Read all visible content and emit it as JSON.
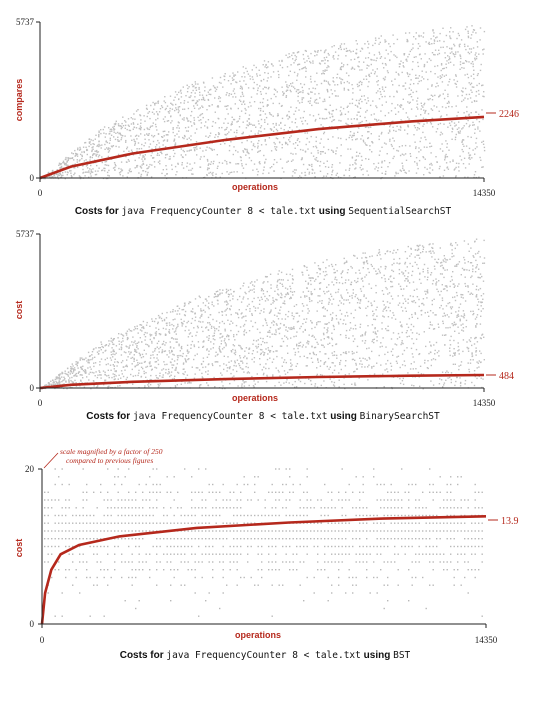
{
  "chart_data": [
    {
      "type": "scatter",
      "title": "",
      "caption": {
        "prefix": "Costs for",
        "command": "java FrequencyCounter 8 < tale.txt",
        "using": "using",
        "impl": "SequentialSearchST"
      },
      "xlabel": "operations",
      "ylabel": "compares",
      "xlim": [
        0,
        14350
      ],
      "ylim": [
        0,
        5737
      ],
      "x_ticks": [
        "0",
        "14350"
      ],
      "y_ticks": [
        "0",
        "5737"
      ],
      "average_final": "2246",
      "series": [
        {
          "name": "",
          "kind": "points",
          "color": "#c0c0c0",
          "envelope": [
            [
              0,
              0
            ],
            [
              2000,
              1900
            ],
            [
              5000,
              3600
            ],
            [
              8000,
              4600
            ],
            [
              11000,
              5250
            ],
            [
              14350,
              5737
            ]
          ]
        },
        {
          "name": "",
          "kind": "average-line",
          "color": "#b5281c",
          "x": [
            0,
            1000,
            3000,
            6000,
            9000,
            12000,
            14350
          ],
          "y": [
            0,
            420,
            900,
            1400,
            1800,
            2080,
            2246
          ]
        }
      ],
      "grid": false
    },
    {
      "type": "scatter",
      "title": "",
      "caption": {
        "prefix": "Costs for",
        "command": "java FrequencyCounter 8 < tale.txt",
        "using": "using",
        "impl": "BinarySearchST"
      },
      "xlabel": "operations",
      "ylabel": "cost",
      "xlim": [
        0,
        14350
      ],
      "ylim": [
        0,
        5737
      ],
      "x_ticks": [
        "0",
        "14350"
      ],
      "y_ticks": [
        "0",
        "5737"
      ],
      "average_final": "484",
      "series": [
        {
          "name": "",
          "kind": "points",
          "color": "#c0c0c0",
          "envelope": [
            [
              0,
              0
            ],
            [
              2000,
              1800
            ],
            [
              5000,
              3400
            ],
            [
              8000,
              4500
            ],
            [
              11000,
              5250
            ],
            [
              14350,
              5600
            ]
          ]
        },
        {
          "name": "",
          "kind": "average-line",
          "color": "#b5281c",
          "x": [
            0,
            1000,
            3000,
            6000,
            9000,
            12000,
            14350
          ],
          "y": [
            0,
            120,
            230,
            330,
            410,
            460,
            484
          ]
        }
      ],
      "grid": false
    },
    {
      "type": "scatter",
      "title": "",
      "caption": {
        "prefix": "Costs for",
        "command": "java FrequencyCounter 8 < tale.txt",
        "using": "using",
        "impl": "BST"
      },
      "xlabel": "operations",
      "ylabel": "cost",
      "xlim": [
        0,
        14350
      ],
      "ylim": [
        0,
        20
      ],
      "x_ticks": [
        "0",
        "14350"
      ],
      "y_ticks": [
        "0",
        "20"
      ],
      "average_final": "13.9",
      "annotation": [
        "scale magnified by a factor of 250",
        "compared to previous figures"
      ],
      "series": [
        {
          "name": "",
          "kind": "points",
          "color": "#b8b8b8",
          "levels": [
            [
              1,
              20
            ]
          ]
        },
        {
          "name": "",
          "kind": "average-line",
          "color": "#b5281c",
          "x": [
            0,
            100,
            300,
            600,
            1200,
            2500,
            5000,
            8000,
            11000,
            14350
          ],
          "y": [
            0,
            4,
            7,
            9,
            10.2,
            11.3,
            12.4,
            13.1,
            13.6,
            13.9
          ]
        }
      ],
      "grid": false
    }
  ]
}
